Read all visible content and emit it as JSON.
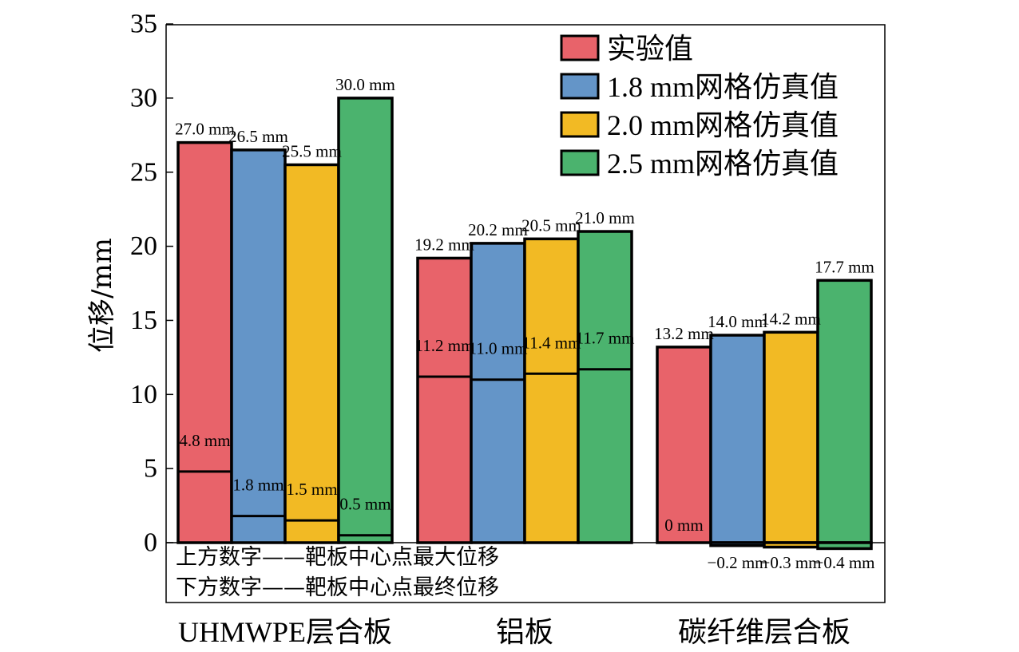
{
  "chart_data": {
    "type": "bar",
    "ylabel": "位移/mm",
    "ylim": [
      0,
      35
    ],
    "yticks": [
      0,
      5,
      10,
      15,
      20,
      25,
      30,
      35
    ],
    "categories": [
      "UHMWPE层合板",
      "铝板",
      "碳纤维层合板"
    ],
    "colors": [
      "#E8636A",
      "#6495C8",
      "#F2BA24",
      "#4BB36E"
    ],
    "series": [
      {
        "name": "实验值",
        "max": [
          27.0,
          19.2,
          13.2
        ],
        "final": [
          4.8,
          11.2,
          0
        ],
        "max_labels": [
          "27.0 mm",
          "19.2 mm",
          "13.2 mm"
        ],
        "final_labels": [
          "4.8 mm",
          "11.2 mm",
          "0 mm"
        ]
      },
      {
        "name": "1.8 mm网格仿真值",
        "max": [
          26.5,
          20.2,
          14.0
        ],
        "final": [
          1.8,
          11.0,
          -0.2
        ],
        "max_labels": [
          "26.5 mm",
          "20.2 mm",
          "14.0 mm"
        ],
        "final_labels": [
          "1.8 mm",
          "11.0 mm",
          "−0.2 mm"
        ]
      },
      {
        "name": "2.0 mm网格仿真值",
        "max": [
          25.5,
          20.5,
          14.2
        ],
        "final": [
          1.5,
          11.4,
          -0.3
        ],
        "max_labels": [
          "25.5 mm",
          "20.5 mm",
          "14.2 mm"
        ],
        "final_labels": [
          "1.5 mm",
          "11.4 mm",
          "−0.3 mm"
        ]
      },
      {
        "name": "2.5 mm网格仿真值",
        "max": [
          30.0,
          21.0,
          17.7
        ],
        "final": [
          0.5,
          11.7,
          -0.4
        ],
        "max_labels": [
          "30.0 mm",
          "21.0 mm",
          "17.7 mm"
        ],
        "final_labels": [
          "0.5 mm",
          "11.7 mm",
          "−0.4 mm"
        ]
      }
    ],
    "annotations": [
      "上方数字——靶板中心点最大位移",
      "下方数字——靶板中心点最终位移"
    ],
    "legend_position": "top-right",
    "grid": false
  }
}
